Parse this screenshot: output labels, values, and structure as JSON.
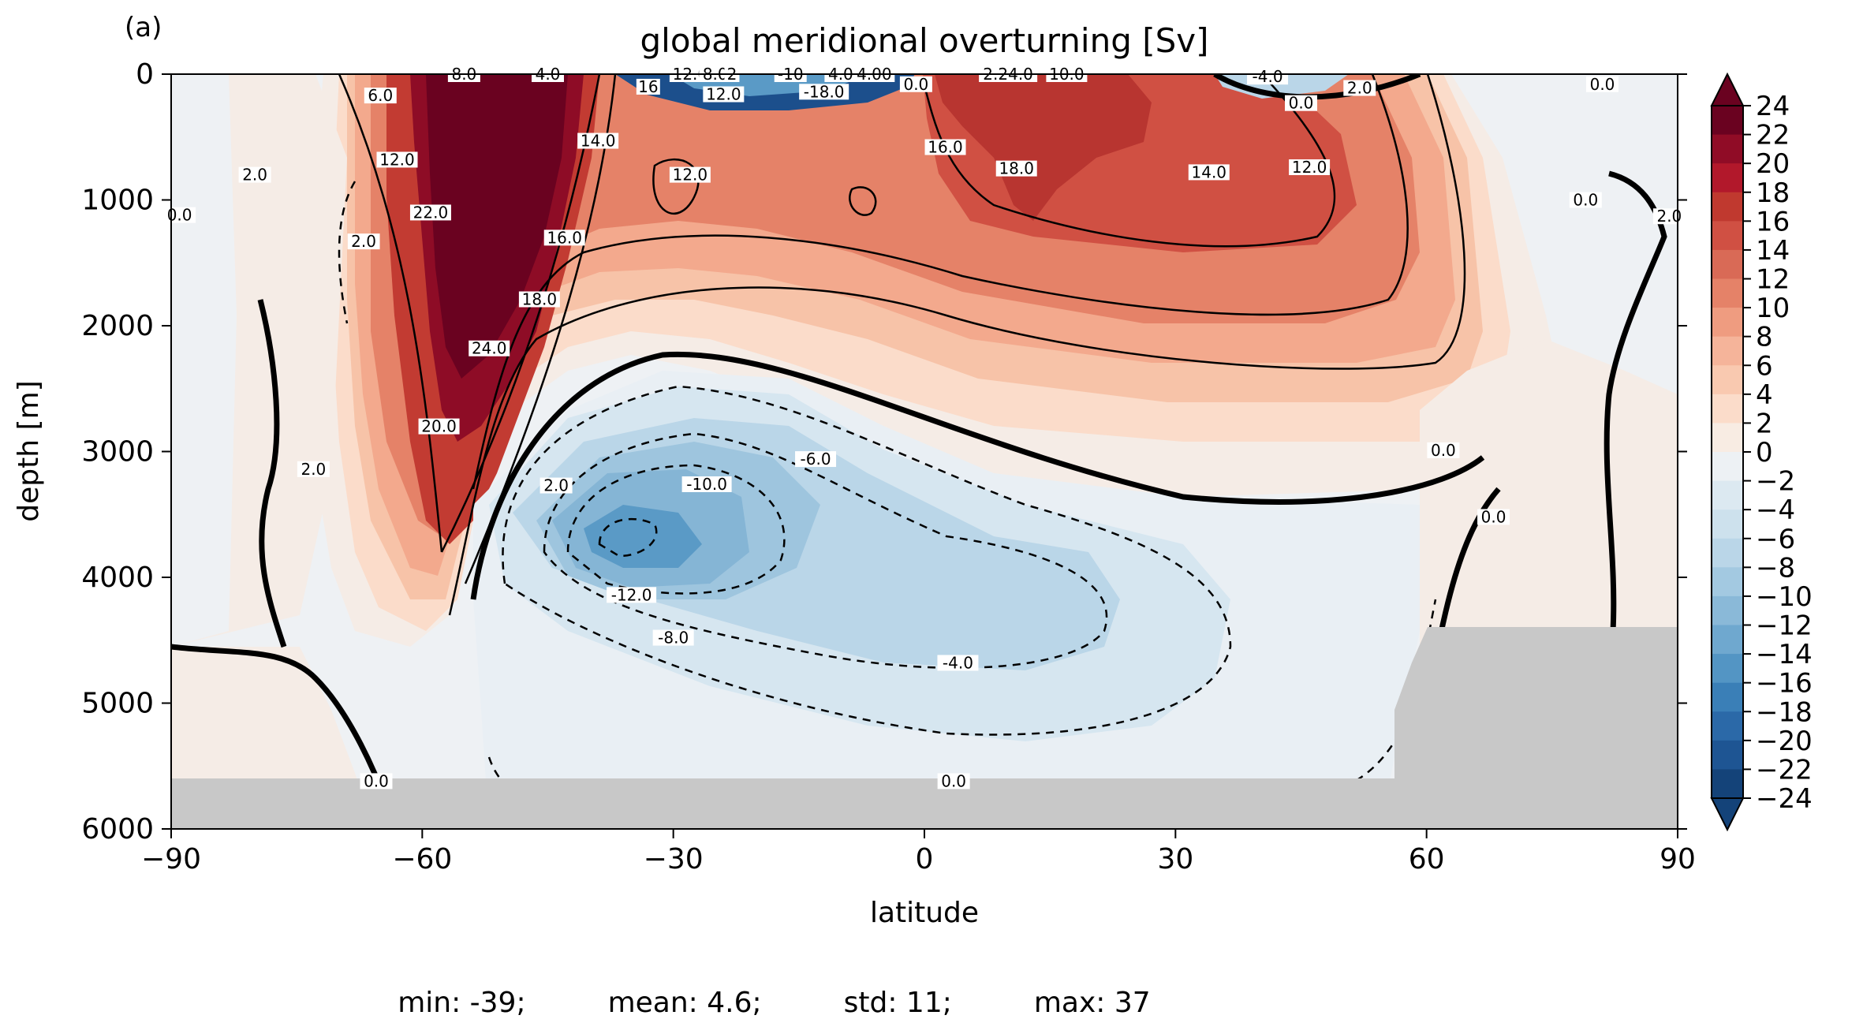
{
  "panel_label": "(a)",
  "stats": {
    "min": "min: -39;",
    "mean": "mean: 4.6;",
    "std": "std: 11;",
    "max": "max: 37"
  },
  "colors": {
    "land_mask": "#c8c8c8",
    "positive_max": "#67001f",
    "negative_max": "#053061",
    "neutral": "#f7f7f7"
  },
  "chart_data": {
    "type": "heatmap",
    "title": "global meridional overturning [Sv]",
    "xlabel": "latitude",
    "ylabel": "depth [m]",
    "xlim": [
      -90,
      90
    ],
    "ylim": [
      6000,
      0
    ],
    "x_ticks": [
      -90,
      -60,
      -30,
      0,
      30,
      60,
      90
    ],
    "x_tick_labels": [
      "−90",
      "−60",
      "−30",
      "0",
      "30",
      "60",
      "90"
    ],
    "y_ticks": [
      0,
      1000,
      2000,
      3000,
      4000,
      5000,
      6000
    ],
    "y_tick_labels": [
      "0",
      "1000",
      "2000",
      "3000",
      "4000",
      "5000",
      "6000"
    ],
    "colorbar": {
      "levels": [
        24,
        22,
        20,
        18,
        16,
        14,
        12,
        10,
        8,
        6,
        4,
        2,
        0,
        -2,
        -4,
        -6,
        -8,
        -10,
        -12,
        -14,
        -16,
        -18,
        -20,
        -22,
        -24
      ],
      "tick_labels": [
        "24",
        "22",
        "20",
        "18",
        "16",
        "14",
        "12",
        "10",
        "8",
        "6",
        "4",
        "2",
        "0",
        "−2",
        "−4",
        "−6",
        "−8",
        "−10",
        "−12",
        "−14",
        "−16",
        "−18",
        "−20",
        "−22",
        "−24"
      ],
      "colors": [
        "#6a0220",
        "#900c26",
        "#b2182b",
        "#c0392f",
        "#d05043",
        "#d96a56",
        "#e58268",
        "#ef9c80",
        "#f5b49a",
        "#f9c9b0",
        "#fbdcca",
        "#f8ece3",
        "#edf1f4",
        "#dce9f1",
        "#cde1ed",
        "#bad6e8",
        "#a3c9e1",
        "#8ab9d8",
        "#6fa8cf",
        "#5395c4",
        "#3a7fb7",
        "#2b69a8",
        "#1e5593",
        "#144379"
      ],
      "extend": "both"
    },
    "contour_labels": [
      {
        "text": "8.0",
        "lat": -55,
        "depth": 0
      },
      {
        "text": "4.0",
        "lat": -45,
        "depth": 0
      },
      {
        "text": "6.0",
        "lat": -65,
        "depth": 170
      },
      {
        "text": "12.0",
        "lat": -63,
        "depth": 680
      },
      {
        "text": "22.0",
        "lat": -59,
        "depth": 1100
      },
      {
        "text": "2.0",
        "lat": -80,
        "depth": 800
      },
      {
        "text": "0.0",
        "lat": -89,
        "depth": 1120
      },
      {
        "text": "2.0",
        "lat": -67,
        "depth": 1330
      },
      {
        "text": "14.0",
        "lat": -39,
        "depth": 530
      },
      {
        "text": "16.0",
        "lat": -43,
        "depth": 1300
      },
      {
        "text": "18.0",
        "lat": -46,
        "depth": 1790
      },
      {
        "text": "24.0",
        "lat": -52,
        "depth": 2180
      },
      {
        "text": "20.0",
        "lat": -58,
        "depth": 2800
      },
      {
        "text": "2.0",
        "lat": -73,
        "depth": 3140
      },
      {
        "text": "12.0",
        "lat": -28,
        "depth": 800
      },
      {
        "text": "12.0",
        "lat": -28,
        "depth": 0
      },
      {
        "text": "8.0",
        "lat": -25,
        "depth": 0
      },
      {
        "text": "2",
        "lat": -23,
        "depth": 0
      },
      {
        "text": "-10",
        "lat": -16,
        "depth": 0
      },
      {
        "text": "4.0",
        "lat": -10,
        "depth": 0
      },
      {
        "text": "4.00",
        "lat": -6,
        "depth": 0
      },
      {
        "text": "-18.0",
        "lat": -12,
        "depth": 140
      },
      {
        "text": "12.0",
        "lat": -24,
        "depth": 160
      },
      {
        "text": "16",
        "lat": -33,
        "depth": 100
      },
      {
        "text": "0.0",
        "lat": -1,
        "depth": 80
      },
      {
        "text": "16.0",
        "lat": 2.5,
        "depth": 580
      },
      {
        "text": "18.0",
        "lat": 11,
        "depth": 750
      },
      {
        "text": "2.24.0",
        "lat": 10,
        "depth": 0
      },
      {
        "text": "10.0",
        "lat": 17,
        "depth": 0
      },
      {
        "text": "14.0",
        "lat": 34,
        "depth": 780
      },
      {
        "text": "12.0",
        "lat": 46,
        "depth": 740
      },
      {
        "text": "-4.0",
        "lat": 41,
        "depth": 20
      },
      {
        "text": "2.0",
        "lat": 52,
        "depth": 110
      },
      {
        "text": "0.0",
        "lat": 45,
        "depth": 230
      },
      {
        "text": "0.0",
        "lat": 81,
        "depth": 80
      },
      {
        "text": "0.0",
        "lat": 79,
        "depth": 1000
      },
      {
        "text": "2.0",
        "lat": -44,
        "depth": 3270
      },
      {
        "text": "-6.0",
        "lat": -13,
        "depth": 3060
      },
      {
        "text": "-10.0",
        "lat": -26,
        "depth": 3260
      },
      {
        "text": "-12.0",
        "lat": -35,
        "depth": 4140
      },
      {
        "text": "-8.0",
        "lat": -30,
        "depth": 4480
      },
      {
        "text": "-4.0",
        "lat": 4,
        "depth": 4680
      },
      {
        "text": "0.0",
        "lat": 62,
        "depth": 2990
      },
      {
        "text": "0.0",
        "lat": 68,
        "depth": 3520
      },
      {
        "text": "0.0",
        "lat": -65.5,
        "depth": 5620
      },
      {
        "text": "0.0",
        "lat": 3.5,
        "depth": 5620
      },
      {
        "text": "2.0",
        "lat": 89,
        "depth": 1130
      }
    ],
    "land_mask": [
      {
        "region": "seafloor",
        "lat_range": [
          -90,
          56
        ],
        "depth_from": 5600
      },
      {
        "region": "northern shelf",
        "lat_range": [
          56,
          90
        ],
        "depth_from": 4400
      }
    ]
  }
}
